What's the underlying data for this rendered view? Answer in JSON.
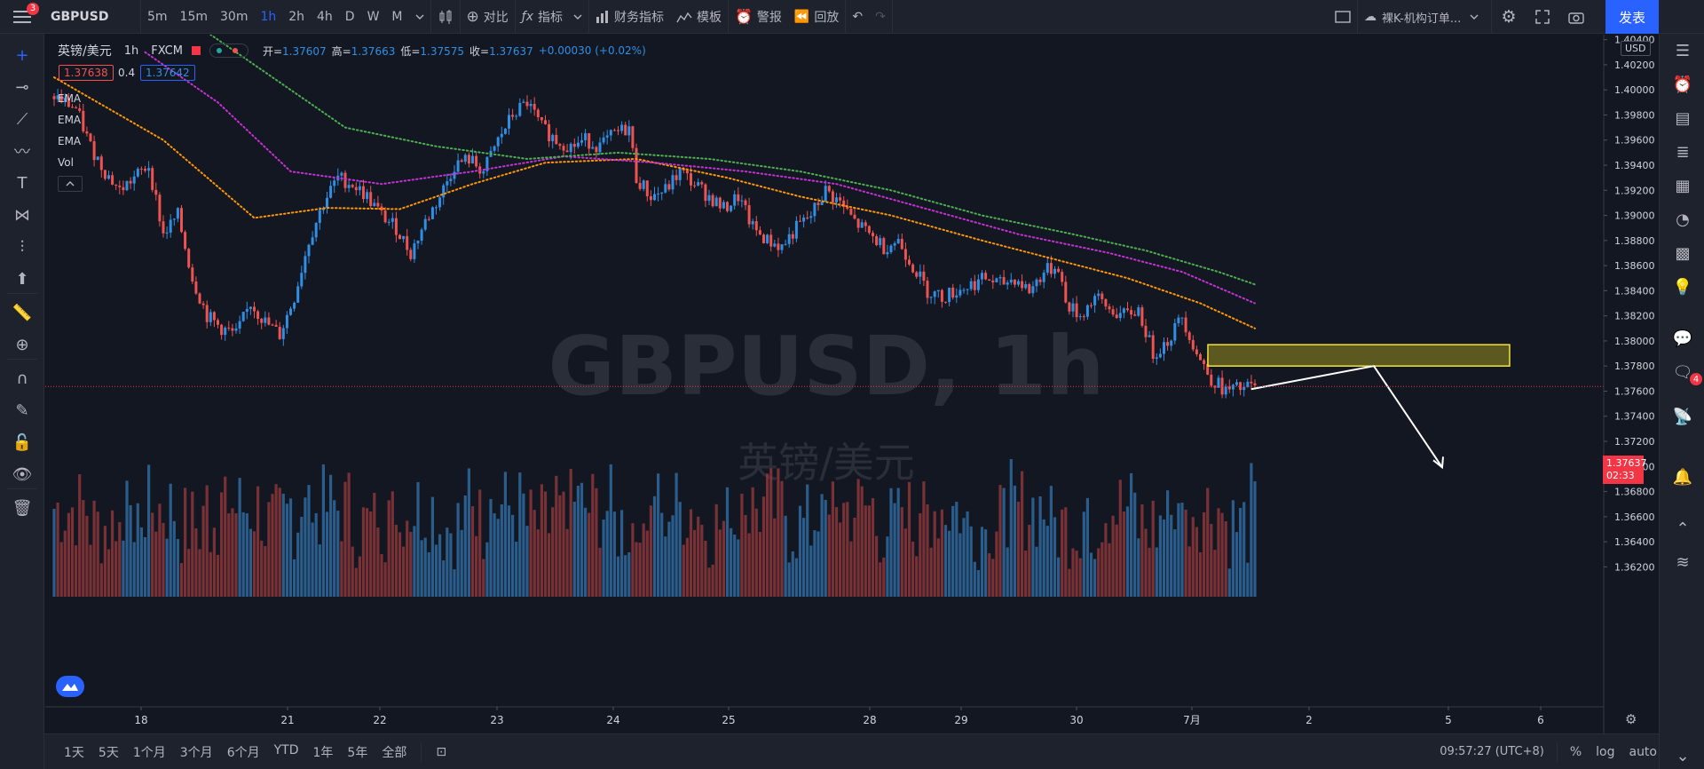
{
  "topbar": {
    "symbol": "GBPUSD",
    "timeframes": [
      "5m",
      "15m",
      "30m",
      "1h",
      "2h",
      "4h",
      "D",
      "W",
      "M"
    ],
    "active_timeframe": "1h",
    "compare_label": "对比",
    "indicators_label": "指标",
    "financials_label": "财务指标",
    "templates_label": "模板",
    "alert_label": "警报",
    "replay_label": "回放",
    "layout_name": "裸K-机构订单...",
    "publish_label": "发表",
    "menu_badge": "3"
  },
  "legend": {
    "title": "英镑/美元",
    "interval": "1h",
    "source": "FXCM",
    "open_label": "开=",
    "open": "1.37607",
    "high_label": "高=",
    "high": "1.37663",
    "low_label": "低=",
    "low": "1.37575",
    "close_label": "收=",
    "close": "1.37637",
    "change": "+0.00030 (+0.02%)",
    "bid": "1.37638",
    "spread": "0.4",
    "ask": "1.37642"
  },
  "indicator_labels": [
    "EMA",
    "EMA",
    "EMA",
    "Vol"
  ],
  "watermark": {
    "main": "GBPUSD, 1h",
    "sub": "英镑/美元"
  },
  "price_scale": {
    "currency": "USD",
    "current_price": "1.37637",
    "countdown": "02:33"
  },
  "time_axis": {
    "labels": [
      "18",
      "21",
      "22",
      "23",
      "24",
      "25",
      "28",
      "29",
      "30",
      "7月",
      "2",
      "5",
      "6"
    ]
  },
  "bottombar": {
    "ranges": [
      "1天",
      "5天",
      "1个月",
      "3个月",
      "6个月",
      "YTD",
      "1年",
      "5年",
      "全部"
    ],
    "clock": "09:57:27 (UTC+8)",
    "percent_label": "%",
    "log_label": "log",
    "auto_label": "auto"
  },
  "rightbar": {
    "chat_badge": "4"
  },
  "chart_data": {
    "type": "candlestick",
    "ylim": [
      1.3604,
      1.4044
    ],
    "y_ticks": [
      1.362,
      1.364,
      1.366,
      1.368,
      1.37,
      1.372,
      1.374,
      1.376,
      1.378,
      1.38,
      1.382,
      1.384,
      1.386,
      1.388,
      1.39,
      1.392,
      1.394,
      1.396,
      1.398,
      1.4,
      1.402,
      1.404
    ],
    "x_labels": [
      "18",
      "21",
      "22",
      "23",
      "24",
      "25",
      "28",
      "29",
      "30",
      "7月",
      "2",
      "5",
      "6"
    ],
    "close_path": [
      [
        0,
        1.3995
      ],
      [
        6,
        1.3985
      ],
      [
        10,
        1.3955
      ],
      [
        14,
        1.3935
      ],
      [
        18,
        1.392
      ],
      [
        22,
        1.393
      ],
      [
        26,
        1.394
      ],
      [
        30,
        1.3885
      ],
      [
        34,
        1.39
      ],
      [
        38,
        1.385
      ],
      [
        42,
        1.382
      ],
      [
        46,
        1.381
      ],
      [
        50,
        1.3805
      ],
      [
        54,
        1.383
      ],
      [
        58,
        1.3815
      ],
      [
        62,
        1.3805
      ],
      [
        66,
        1.3835
      ],
      [
        70,
        1.388
      ],
      [
        74,
        1.391
      ],
      [
        78,
        1.393
      ],
      [
        82,
        1.3925
      ],
      [
        86,
        1.3915
      ],
      [
        90,
        1.39
      ],
      [
        94,
        1.389
      ],
      [
        98,
        1.387
      ],
      [
        102,
        1.3895
      ],
      [
        106,
        1.3915
      ],
      [
        110,
        1.394
      ],
      [
        114,
        1.3945
      ],
      [
        118,
        1.3935
      ],
      [
        122,
        1.396
      ],
      [
        126,
        1.398
      ],
      [
        130,
        1.399
      ],
      [
        134,
        1.397
      ],
      [
        138,
        1.396
      ],
      [
        142,
        1.3955
      ],
      [
        146,
        1.396
      ],
      [
        150,
        1.3955
      ],
      [
        154,
        1.3965
      ],
      [
        158,
        1.397
      ],
      [
        160,
        1.393
      ],
      [
        164,
        1.3915
      ],
      [
        168,
        1.392
      ],
      [
        172,
        1.3935
      ],
      [
        176,
        1.3925
      ],
      [
        180,
        1.3915
      ],
      [
        184,
        1.3905
      ],
      [
        188,
        1.3915
      ],
      [
        192,
        1.389
      ],
      [
        196,
        1.388
      ],
      [
        200,
        1.3875
      ],
      [
        204,
        1.389
      ],
      [
        208,
        1.39
      ],
      [
        212,
        1.392
      ],
      [
        216,
        1.391
      ],
      [
        220,
        1.3895
      ],
      [
        224,
        1.3885
      ],
      [
        228,
        1.3875
      ],
      [
        232,
        1.388
      ],
      [
        236,
        1.386
      ],
      [
        240,
        1.384
      ],
      [
        244,
        1.3835
      ],
      [
        248,
        1.384
      ],
      [
        252,
        1.3845
      ],
      [
        256,
        1.385
      ],
      [
        260,
        1.3845
      ],
      [
        264,
        1.385
      ],
      [
        268,
        1.384
      ],
      [
        272,
        1.3855
      ],
      [
        276,
        1.386
      ],
      [
        278,
        1.383
      ],
      [
        282,
        1.382
      ],
      [
        286,
        1.3835
      ],
      [
        290,
        1.3825
      ],
      [
        294,
        1.382
      ],
      [
        298,
        1.3825
      ],
      [
        302,
        1.379
      ],
      [
        306,
        1.38
      ],
      [
        310,
        1.382
      ],
      [
        314,
        1.379
      ],
      [
        318,
        1.377
      ],
      [
        322,
        1.376
      ],
      [
        326,
        1.3762
      ],
      [
        330,
        1.3764
      ]
    ],
    "ema_fast": [
      [
        0,
        1.401
      ],
      [
        30,
        1.396
      ],
      [
        55,
        1.3898
      ],
      [
        75,
        1.3906
      ],
      [
        95,
        1.3905
      ],
      [
        115,
        1.3925
      ],
      [
        135,
        1.3942
      ],
      [
        160,
        1.3945
      ],
      [
        185,
        1.393
      ],
      [
        205,
        1.3915
      ],
      [
        230,
        1.39
      ],
      [
        255,
        1.388
      ],
      [
        275,
        1.3865
      ],
      [
        295,
        1.385
      ],
      [
        315,
        1.383
      ],
      [
        330,
        1.381
      ]
    ],
    "ema_mid": [
      [
        25,
        1.403
      ],
      [
        45,
        1.399
      ],
      [
        65,
        1.3935
      ],
      [
        90,
        1.3925
      ],
      [
        115,
        1.3935
      ],
      [
        140,
        1.3947
      ],
      [
        165,
        1.3942
      ],
      [
        190,
        1.3935
      ],
      [
        215,
        1.3925
      ],
      [
        240,
        1.3905
      ],
      [
        265,
        1.3885
      ],
      [
        290,
        1.387
      ],
      [
        310,
        1.3855
      ],
      [
        330,
        1.383
      ]
    ],
    "ema_slow": [
      [
        40,
        1.405
      ],
      [
        60,
        1.401
      ],
      [
        80,
        1.397
      ],
      [
        105,
        1.3955
      ],
      [
        130,
        1.3945
      ],
      [
        155,
        1.395
      ],
      [
        180,
        1.3945
      ],
      [
        205,
        1.3935
      ],
      [
        230,
        1.392
      ],
      [
        255,
        1.39
      ],
      [
        280,
        1.3885
      ],
      [
        300,
        1.3872
      ],
      [
        320,
        1.3855
      ],
      [
        330,
        1.3845
      ]
    ],
    "zone_price_range": [
      1.378,
      1.3797
    ],
    "current_price": 1.37637,
    "projection_arrow": [
      [
        1.378
      ],
      [
        1.37
      ]
    ],
    "colors": {
      "up": "#2f8fe5",
      "down": "#ef5350",
      "ema_fast": "#ff9800",
      "ema_mid": "#c531d2",
      "ema_slow": "#4caf50",
      "zone": "#f5e23a"
    }
  }
}
